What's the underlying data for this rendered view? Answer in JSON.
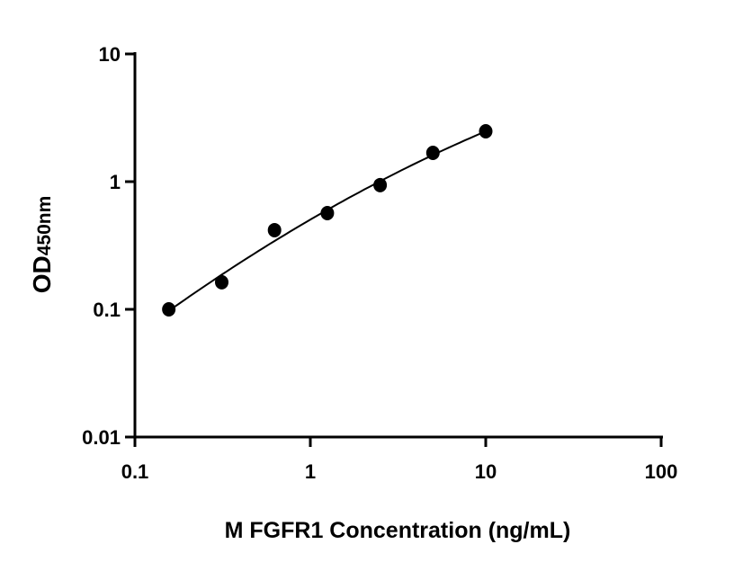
{
  "chart_data": {
    "type": "scatter",
    "title": "",
    "xlabel": "M FGFR1 Concentration (ng/mL)",
    "ylabel_main": "OD",
    "ylabel_sub": "450nm",
    "x_scale": "log",
    "y_scale": "log",
    "xlim": [
      0.1,
      100
    ],
    "ylim": [
      0.01,
      10
    ],
    "x_ticks": [
      0.1,
      1,
      10,
      100
    ],
    "x_tick_labels": [
      "0.1",
      "1",
      "10",
      "100"
    ],
    "y_ticks": [
      0.01,
      0.1,
      1,
      10
    ],
    "y_tick_labels": [
      "0.01",
      "0.1",
      "1",
      "10"
    ],
    "grid": false,
    "fit_line": true,
    "marker_color": "#000000",
    "series": [
      {
        "x": [
          0.156,
          0.3125,
          0.625,
          1.25,
          2.5,
          5,
          10
        ],
        "y": [
          0.1,
          0.163,
          0.417,
          0.567,
          0.94,
          1.68,
          2.48
        ]
      }
    ]
  }
}
